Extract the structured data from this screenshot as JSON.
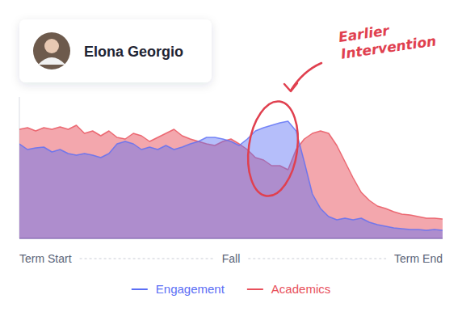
{
  "profile": {
    "name": "Elona Georgio"
  },
  "chart_data": {
    "type": "area",
    "annotations": [
      "Earlier Intervention"
    ],
    "categories": [
      "Term Start",
      null,
      null,
      null,
      null,
      null,
      null,
      null,
      null,
      null,
      null,
      null,
      null,
      null,
      null,
      null,
      null,
      null,
      null,
      null,
      null,
      null,
      null,
      null,
      null,
      null,
      "Fall",
      null,
      null,
      null,
      null,
      null,
      null,
      null,
      null,
      null,
      null,
      null,
      null,
      null,
      null,
      null,
      null,
      null,
      null,
      null,
      null,
      null,
      null,
      null,
      null,
      null,
      "Term End"
    ],
    "series": [
      {
        "name": "Engagement",
        "color": "#5b6ef5",
        "values": [
          117,
          110,
          112,
          113,
          107,
          110,
          105,
          103,
          105,
          103,
          100,
          105,
          117,
          120,
          117,
          110,
          113,
          110,
          115,
          110,
          113,
          117,
          120,
          125,
          125,
          123,
          120,
          115,
          123,
          133,
          137,
          140,
          143,
          145,
          133,
          95,
          55,
          37,
          27,
          23,
          25,
          23,
          25,
          20,
          17,
          15,
          13,
          12,
          11,
          11,
          10,
          11,
          10
        ]
      },
      {
        "name": "Academics",
        "color": "#e8505b",
        "values": [
          135,
          137,
          133,
          137,
          135,
          138,
          135,
          140,
          130,
          133,
          127,
          133,
          125,
          123,
          130,
          127,
          120,
          125,
          130,
          135,
          127,
          123,
          120,
          117,
          115,
          120,
          123,
          117,
          110,
          100,
          97,
          90,
          90,
          85,
          110,
          123,
          130,
          133,
          130,
          115,
          95,
          75,
          57,
          47,
          40,
          37,
          33,
          30,
          29,
          27,
          25,
          25,
          24
        ]
      }
    ],
    "ylim": [
      0,
      175
    ],
    "tick_labels": "x",
    "legend": "bottom"
  }
}
